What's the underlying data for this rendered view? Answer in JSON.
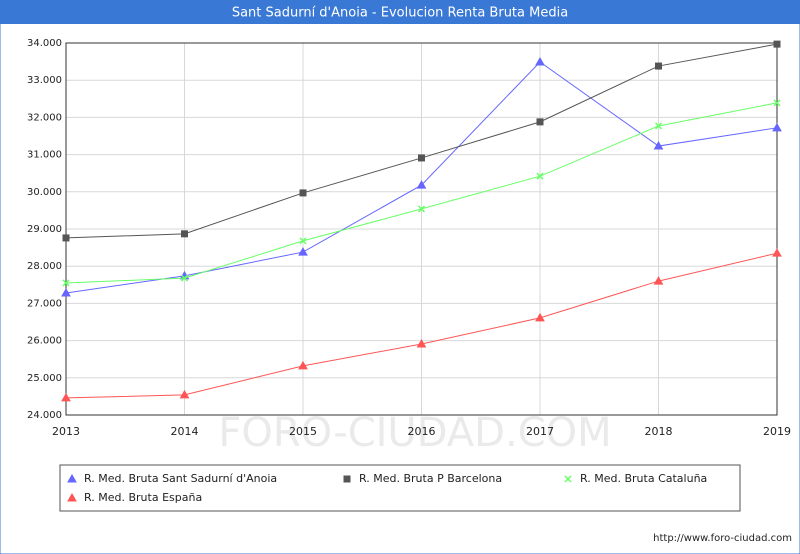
{
  "chart_data": {
    "type": "line",
    "title": "Sant Sadurní d'Anoia - Evolucion Renta Bruta Media",
    "categories": [
      "2013",
      "2014",
      "2015",
      "2016",
      "2017",
      "2018",
      "2019"
    ],
    "series": [
      {
        "name": "R. Med. Bruta Sant Sadurní d'Anoia",
        "color": "#6666ff",
        "marker": "triangle",
        "values": [
          27280,
          27740,
          28380,
          30180,
          33490,
          31230,
          31720
        ]
      },
      {
        "name": "R. Med. Bruta P Barcelona",
        "color": "#555555",
        "marker": "square",
        "values": [
          28760,
          28870,
          29970,
          30910,
          31880,
          33380,
          33970
        ]
      },
      {
        "name": "R. Med. Bruta Cataluña",
        "color": "#66ff66",
        "marker": "cross",
        "values": [
          27550,
          27680,
          28680,
          29540,
          30420,
          31770,
          32390
        ]
      },
      {
        "name": "R. Med. Bruta España",
        "color": "#ff5555",
        "marker": "triangle",
        "values": [
          24460,
          24540,
          25320,
          25910,
          26610,
          27600,
          28350
        ]
      }
    ],
    "ylim": [
      24000,
      34000
    ],
    "yticks": [
      {
        "value": 24000,
        "label": "24.000"
      },
      {
        "value": 25000,
        "label": "25.000"
      },
      {
        "value": 26000,
        "label": "26.000"
      },
      {
        "value": 27000,
        "label": "27.000"
      },
      {
        "value": 28000,
        "label": "28.000"
      },
      {
        "value": 29000,
        "label": "29.000"
      },
      {
        "value": 30000,
        "label": "30.000"
      },
      {
        "value": 31000,
        "label": "31.000"
      },
      {
        "value": 32000,
        "label": "32.000"
      },
      {
        "value": 33000,
        "label": "33.000"
      },
      {
        "value": 34000,
        "label": "34.000"
      }
    ],
    "grid": true,
    "watermark": "FORO-CIUDAD.COM",
    "source": "http://www.foro-ciudad.com"
  }
}
